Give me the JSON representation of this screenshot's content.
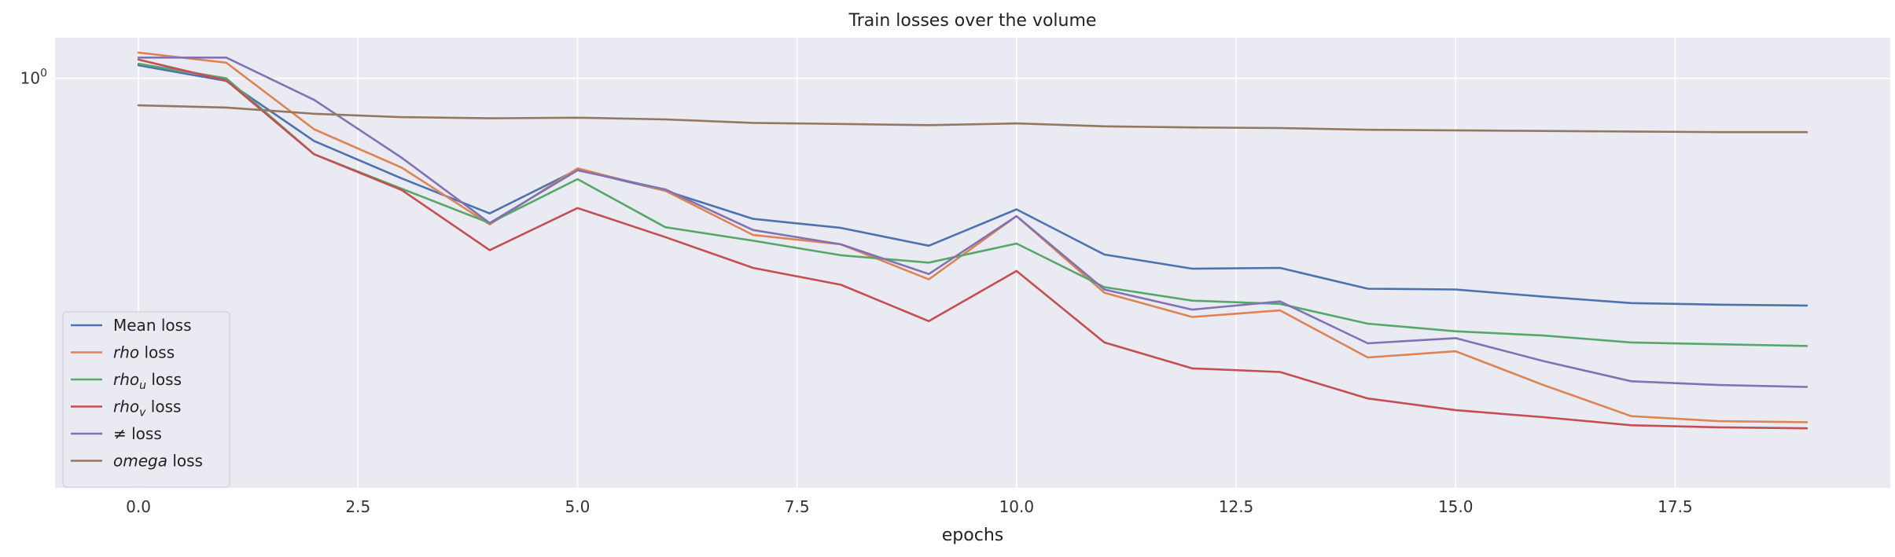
{
  "chart_data": {
    "type": "line",
    "title": "Train losses over the volume",
    "xlabel": "epochs",
    "ylabel": "",
    "yscale": "log",
    "xlim": [
      -0.95,
      19.95
    ],
    "ylim": [
      0.46,
      1.08
    ],
    "grid": true,
    "legend_position": "lower-left",
    "x": [
      0,
      1,
      2,
      3,
      4,
      5,
      6,
      7,
      8,
      9,
      10,
      11,
      12,
      13,
      14,
      15,
      16,
      17,
      18,
      19
    ],
    "x_ticks": [
      0.0,
      2.5,
      5.0,
      7.5,
      10.0,
      12.5,
      15.0,
      17.5
    ],
    "x_tick_labels": [
      "0.0",
      "2.5",
      "5.0",
      "7.5",
      "10.0",
      "12.5",
      "15.0",
      "17.5"
    ],
    "y_ticks": [
      1.0
    ],
    "y_tick_labels": [
      {
        "base": "10",
        "exp": "0"
      }
    ],
    "series": [
      {
        "name_pre": "Mean loss",
        "name_italic": "",
        "name_sub": "",
        "name_post": "",
        "color": "#4c72b0",
        "values": [
          1.025,
          0.995,
          0.888,
          0.827,
          0.774,
          0.841,
          0.808,
          0.766,
          0.753,
          0.728,
          0.78,
          0.716,
          0.697,
          0.698,
          0.671,
          0.67,
          0.661,
          0.653,
          0.651,
          0.65
        ]
      },
      {
        "name_pre": "",
        "name_italic": "rho",
        "name_sub": "",
        "name_post": " loss",
        "color": "#dd8452",
        "values": [
          1.05,
          1.03,
          0.908,
          0.844,
          0.758,
          0.843,
          0.808,
          0.743,
          0.73,
          0.683,
          0.77,
          0.666,
          0.636,
          0.644,
          0.589,
          0.596,
          0.559,
          0.527,
          0.522,
          0.521
        ]
      },
      {
        "name_pre": "",
        "name_italic": "rho",
        "name_sub": "u",
        "name_post": " loss",
        "color": "#55a868",
        "values": [
          1.028,
          1.0,
          0.866,
          0.811,
          0.76,
          0.826,
          0.754,
          0.735,
          0.715,
          0.705,
          0.731,
          0.673,
          0.656,
          0.652,
          0.628,
          0.619,
          0.614,
          0.606,
          0.604,
          0.602
        ]
      },
      {
        "name_pre": "",
        "name_italic": "rho",
        "name_sub": "v",
        "name_post": " loss",
        "color": "#c44e52",
        "values": [
          1.036,
          0.996,
          0.866,
          0.809,
          0.722,
          0.782,
          0.74,
          0.698,
          0.676,
          0.631,
          0.694,
          0.606,
          0.577,
          0.573,
          0.545,
          0.533,
          0.526,
          0.518,
          0.516,
          0.515
        ]
      },
      {
        "name_pre": "",
        "name_italic": "",
        "name_sub": "",
        "name_post": " loss",
        "name_symbol": "≠",
        "color": "#8172b3",
        "values": [
          1.04,
          1.04,
          0.96,
          0.86,
          0.76,
          0.84,
          0.81,
          0.75,
          0.73,
          0.69,
          0.77,
          0.67,
          0.645,
          0.655,
          0.605,
          0.611,
          0.585,
          0.563,
          0.559,
          0.557
        ]
      },
      {
        "name_pre": "",
        "name_italic": "omega",
        "name_sub": "",
        "name_post": " loss",
        "color": "#937860",
        "values": [
          0.95,
          0.946,
          0.935,
          0.929,
          0.927,
          0.928,
          0.925,
          0.919,
          0.917,
          0.915,
          0.918,
          0.913,
          0.911,
          0.91,
          0.907,
          0.906,
          0.905,
          0.904,
          0.903,
          0.903
        ]
      }
    ]
  }
}
